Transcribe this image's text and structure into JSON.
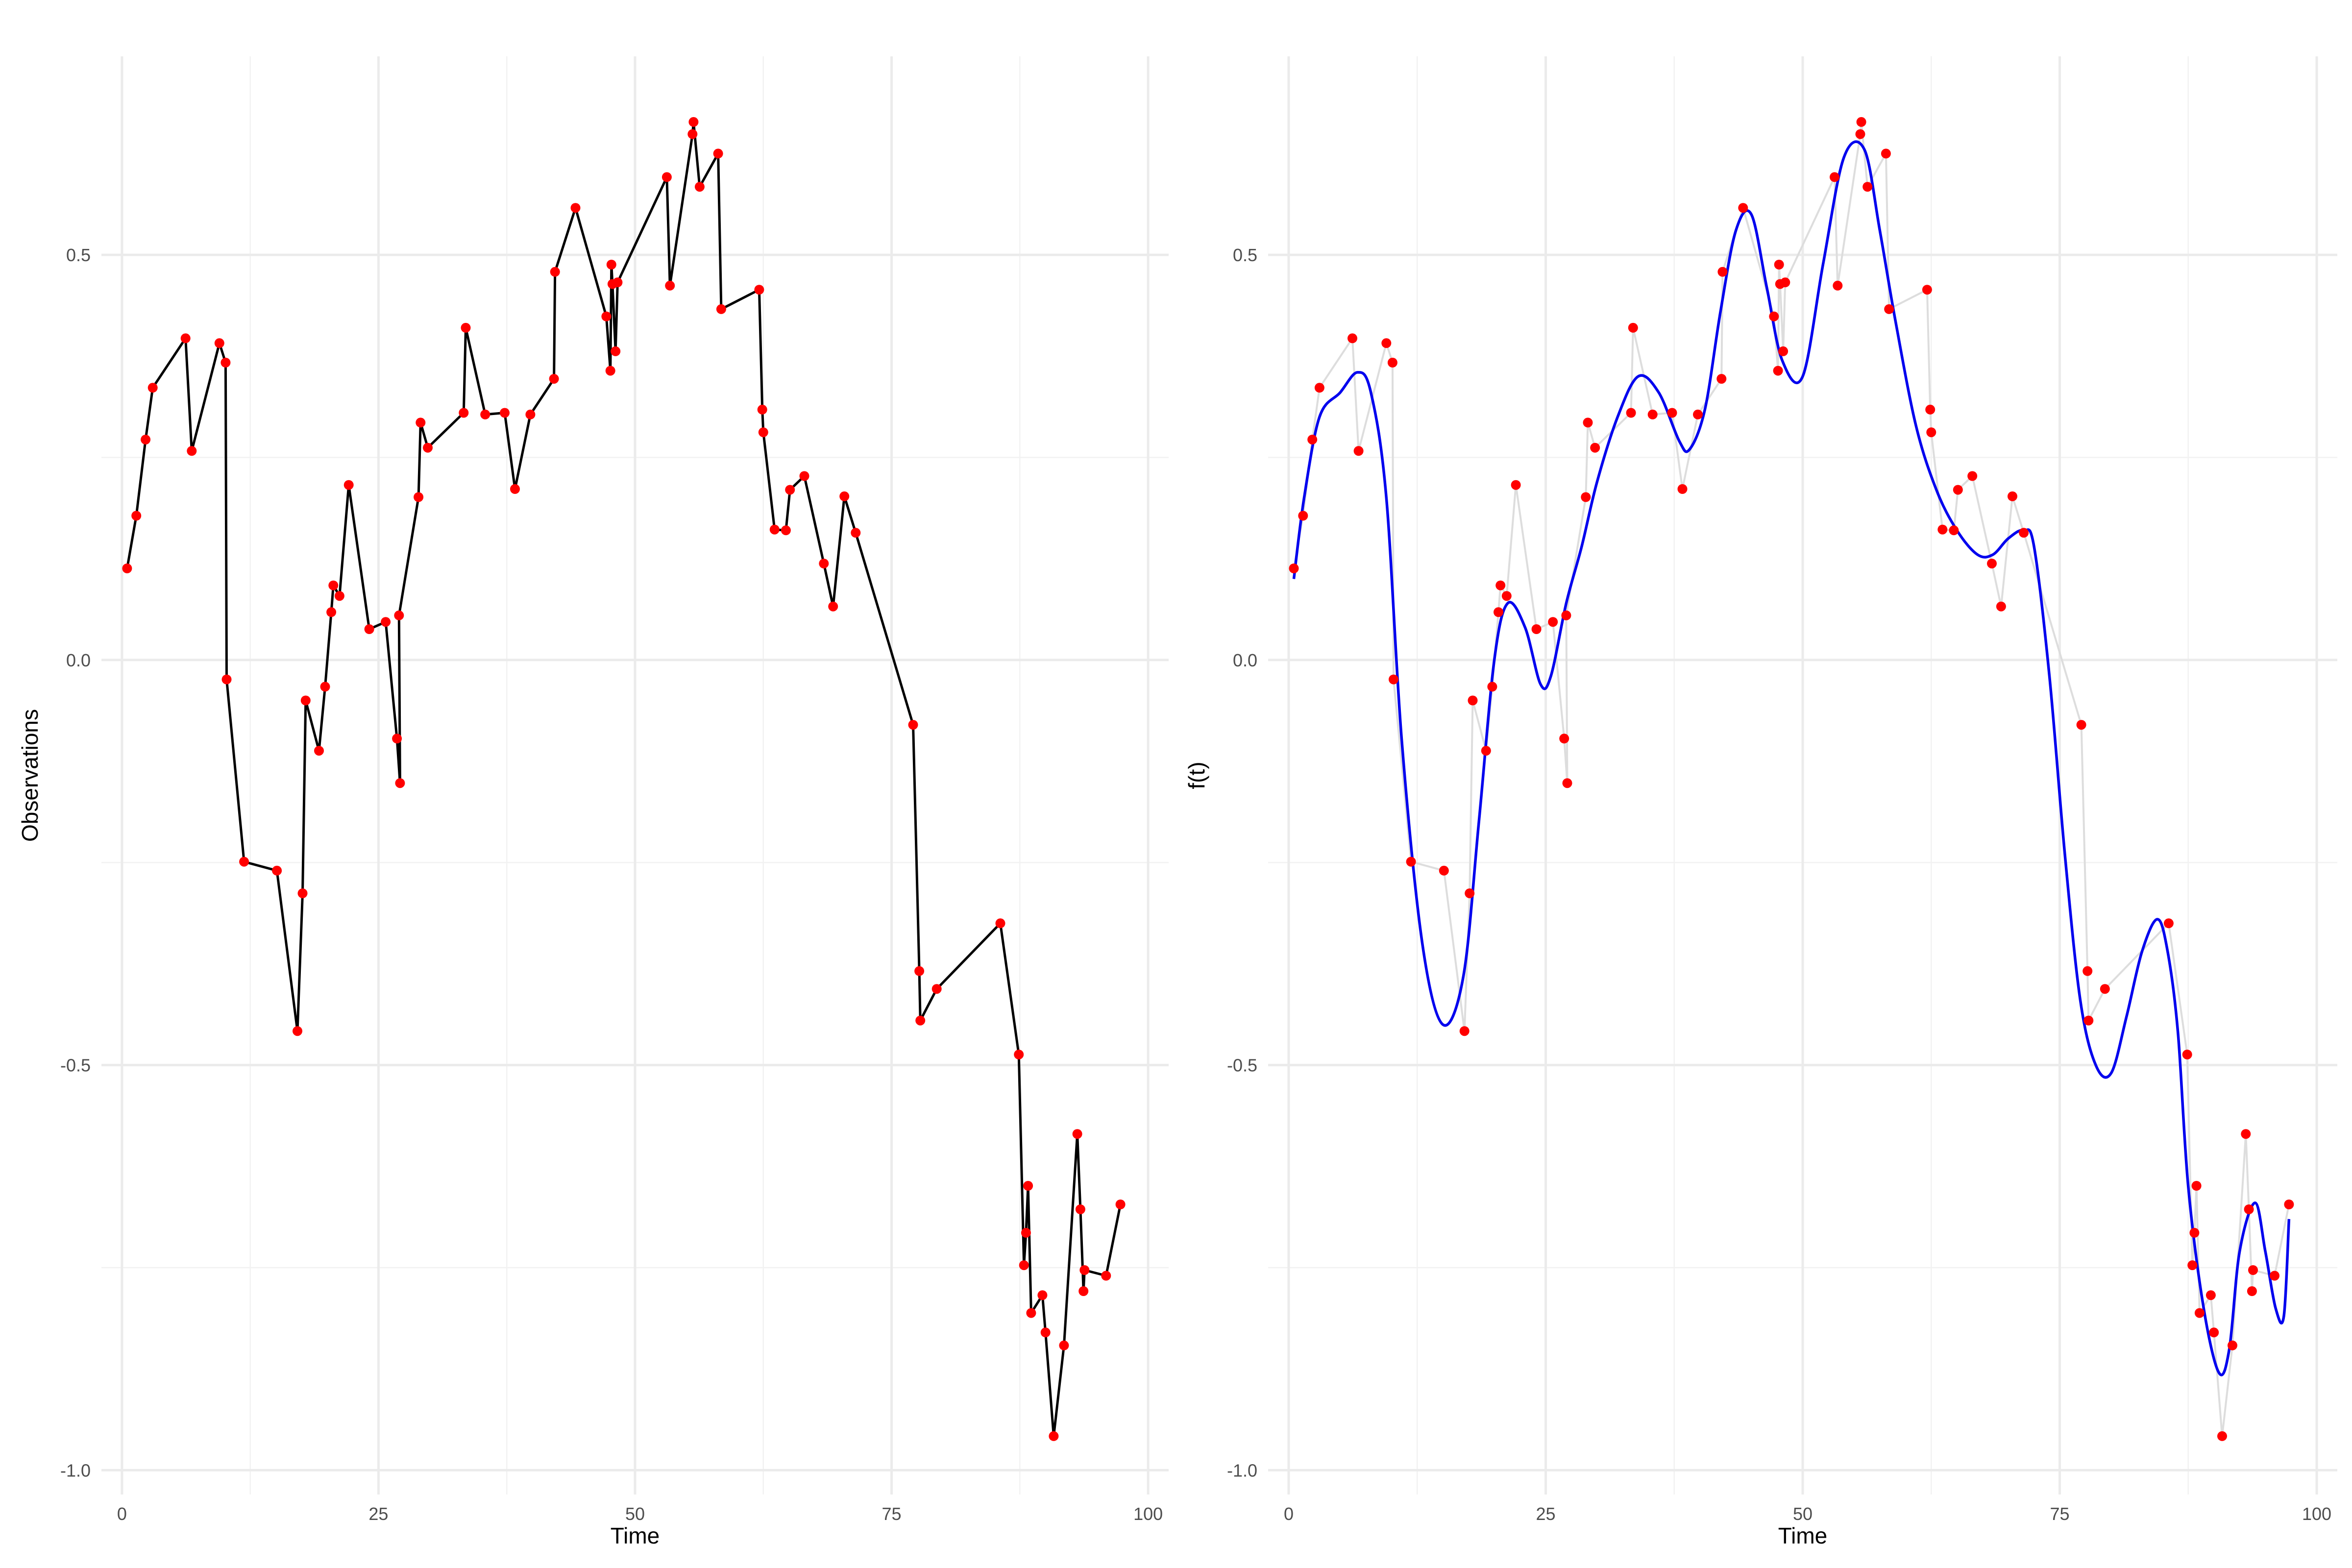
{
  "chart_data": [
    {
      "type": "line",
      "xlabel": "Time",
      "ylabel": "Observations",
      "xlim": [
        -2,
        102
      ],
      "ylim": [
        -1.03,
        0.745
      ],
      "xticks": [
        0,
        25,
        50,
        75,
        100
      ],
      "xtick_labels": [
        "0",
        "25",
        "50",
        "75",
        "100"
      ],
      "yticks": [
        -1.0,
        -0.5,
        0.0,
        0.5
      ],
      "ytick_labels": [
        "-1.0",
        "-0.5",
        "0.0",
        "0.5"
      ],
      "grid": true,
      "legend": "none",
      "colors": {
        "line": "#000000",
        "points": "#ff0000"
      },
      "series": [
        {
          "x": [
            0.5,
            1.4,
            2.3,
            3.0,
            6.2,
            6.8,
            9.5,
            10.1,
            10.2,
            11.9,
            15.1,
            17.1,
            17.6,
            17.9,
            19.2,
            19.8,
            20.4,
            20.6,
            21.2,
            22.1,
            24.1,
            25.7,
            26.8,
            27.1,
            27.0,
            28.9,
            29.1,
            29.8,
            33.3,
            33.5,
            35.4,
            37.3,
            38.3,
            39.8,
            42.1,
            42.2,
            44.2,
            47.2,
            47.6,
            47.7,
            47.8,
            48.1,
            48.3,
            53.1,
            53.4,
            55.6,
            55.7,
            56.3,
            58.1,
            58.4,
            62.1,
            62.4,
            62.5,
            63.6,
            64.7,
            65.1,
            66.5,
            68.4,
            69.3,
            70.4,
            71.5,
            77.1,
            77.7,
            77.8,
            79.4,
            85.6,
            87.4,
            87.9,
            88.1,
            88.3,
            88.6,
            89.7,
            90.0,
            90.8,
            91.8,
            93.1,
            93.4,
            93.7,
            93.8,
            95.9,
            97.3
          ],
          "y": [
            0.113,
            0.178,
            0.272,
            0.336,
            0.397,
            0.258,
            0.391,
            0.367,
            -0.024,
            -0.249,
            -0.26,
            -0.458,
            -0.288,
            -0.05,
            -0.112,
            -0.033,
            0.059,
            0.092,
            0.079,
            0.216,
            0.038,
            0.047,
            -0.097,
            -0.152,
            0.055,
            0.201,
            0.293,
            0.262,
            0.305,
            0.41,
            0.303,
            0.305,
            0.211,
            0.303,
            0.347,
            0.479,
            0.558,
            0.424,
            0.357,
            0.488,
            0.464,
            0.381,
            0.466,
            0.596,
            0.462,
            0.649,
            0.664,
            0.584,
            0.625,
            0.433,
            0.457,
            0.309,
            0.281,
            0.161,
            0.16,
            0.21,
            0.227,
            0.119,
            0.066,
            0.202,
            0.157,
            -0.08,
            -0.384,
            -0.445,
            -0.406,
            -0.325,
            -0.487,
            -0.747,
            -0.707,
            -0.649,
            -0.806,
            -0.784,
            -0.83,
            -0.958,
            -0.846,
            -0.585,
            -0.678,
            -0.779,
            -0.753,
            -0.76,
            -0.672
          ]
        }
      ]
    },
    {
      "type": "line",
      "xlabel": "Time",
      "ylabel": "f(t)",
      "xlim": [
        -2,
        102
      ],
      "ylim": [
        -1.03,
        0.745
      ],
      "xticks": [
        0,
        25,
        50,
        75,
        100
      ],
      "xtick_labels": [
        "0",
        "25",
        "50",
        "75",
        "100"
      ],
      "yticks": [
        -1.0,
        -0.5,
        0.0,
        0.5
      ],
      "ytick_labels": [
        "-1.0",
        "-0.5",
        "0.0",
        "0.5"
      ],
      "grid": true,
      "legend": "none",
      "colors": {
        "observed_line": "#dddddd",
        "fitted_line": "#0000ee",
        "points": "#ff0000"
      },
      "series": [
        {
          "x": [
            0.5,
            1.4,
            2.3,
            3.0,
            6.2,
            6.8,
            9.5,
            10.1,
            10.2,
            11.9,
            15.1,
            17.1,
            17.6,
            17.9,
            19.2,
            19.8,
            20.4,
            20.6,
            21.2,
            22.1,
            24.1,
            25.7,
            26.8,
            27.1,
            27.0,
            28.9,
            29.1,
            29.8,
            33.3,
            33.5,
            35.4,
            37.3,
            38.3,
            39.8,
            42.1,
            42.2,
            44.2,
            47.2,
            47.6,
            47.7,
            47.8,
            48.1,
            48.3,
            53.1,
            53.4,
            55.6,
            55.7,
            56.3,
            58.1,
            58.4,
            62.1,
            62.4,
            62.5,
            63.6,
            64.7,
            65.1,
            66.5,
            68.4,
            69.3,
            70.4,
            71.5,
            77.1,
            77.7,
            77.8,
            79.4,
            85.6,
            87.4,
            87.9,
            88.1,
            88.3,
            88.6,
            89.7,
            90.0,
            90.8,
            91.8,
            93.1,
            93.4,
            93.7,
            93.8,
            95.9,
            97.3
          ],
          "y": [
            0.113,
            0.178,
            0.272,
            0.336,
            0.397,
            0.258,
            0.391,
            0.367,
            -0.024,
            -0.249,
            -0.26,
            -0.458,
            -0.288,
            -0.05,
            -0.112,
            -0.033,
            0.059,
            0.092,
            0.079,
            0.216,
            0.038,
            0.047,
            -0.097,
            -0.152,
            0.055,
            0.201,
            0.293,
            0.262,
            0.305,
            0.41,
            0.303,
            0.305,
            0.211,
            0.303,
            0.347,
            0.479,
            0.558,
            0.424,
            0.357,
            0.488,
            0.464,
            0.381,
            0.466,
            0.596,
            0.462,
            0.649,
            0.664,
            0.584,
            0.625,
            0.433,
            0.457,
            0.309,
            0.281,
            0.161,
            0.16,
            0.21,
            0.227,
            0.119,
            0.066,
            0.202,
            0.157,
            -0.08,
            -0.384,
            -0.445,
            -0.406,
            -0.325,
            -0.487,
            -0.747,
            -0.707,
            -0.649,
            -0.806,
            -0.784,
            -0.83,
            -0.958,
            -0.846,
            -0.585,
            -0.678,
            -0.779,
            -0.753,
            -0.76,
            -0.672
          ]
        },
        {
          "x": [
            0.5,
            1.5,
            3,
            5,
            6.7,
            8,
            9.5,
            11,
            13,
            15,
            17,
            18.5,
            20,
            21.3,
            23,
            24.5,
            25.5,
            27,
            28.5,
            30,
            32,
            34,
            36,
            38,
            39,
            40.5,
            42,
            43.5,
            45,
            46.5,
            48,
            50,
            52,
            54,
            56,
            57.5,
            59,
            61,
            63,
            65,
            67,
            68.5,
            70,
            71.5,
            72.5,
            74,
            75.5,
            77,
            78.5,
            80,
            81.5,
            83,
            84.5,
            85.5,
            86.5,
            87.5,
            89,
            90.5,
            91.5,
            92.5,
            94,
            95,
            96,
            96.8,
            97.3
          ],
          "y": [
            0.1,
            0.2,
            0.3,
            0.33,
            0.355,
            0.33,
            0.2,
            -0.1,
            -0.35,
            -0.45,
            -0.39,
            -0.2,
            0.0,
            0.07,
            0.04,
            -0.03,
            -0.02,
            0.07,
            0.14,
            0.22,
            0.3,
            0.35,
            0.33,
            0.27,
            0.26,
            0.31,
            0.43,
            0.53,
            0.55,
            0.46,
            0.37,
            0.35,
            0.49,
            0.62,
            0.63,
            0.53,
            0.42,
            0.29,
            0.21,
            0.16,
            0.13,
            0.13,
            0.15,
            0.16,
            0.14,
            -0.02,
            -0.24,
            -0.42,
            -0.5,
            -0.51,
            -0.44,
            -0.36,
            -0.32,
            -0.36,
            -0.46,
            -0.65,
            -0.8,
            -0.88,
            -0.85,
            -0.73,
            -0.67,
            -0.73,
            -0.8,
            -0.81,
            -0.69
          ]
        }
      ]
    }
  ]
}
